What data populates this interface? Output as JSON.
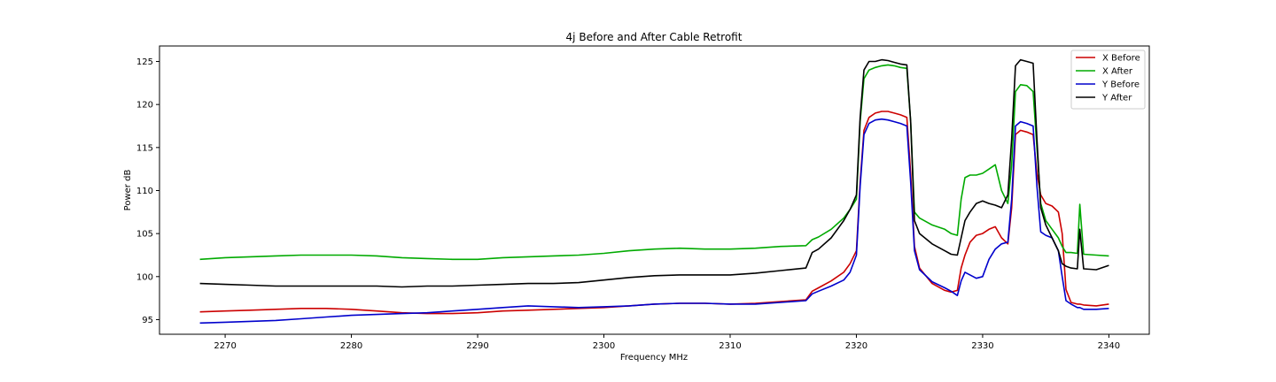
{
  "chart_data": {
    "type": "line",
    "title": "4j Before and After Cable Retrofit",
    "xlabel": "Frequency MHz",
    "ylabel": "Power dB",
    "xlim": [
      2264.8,
      2343.2
    ],
    "ylim": [
      93.3,
      126.8
    ],
    "xticks": [
      2270,
      2280,
      2290,
      2300,
      2310,
      2320,
      2330,
      2340
    ],
    "yticks": [
      95,
      100,
      105,
      110,
      115,
      120,
      125
    ],
    "grid": false,
    "legend_position": "top-right",
    "x": [
      2268,
      2270,
      2272,
      2274,
      2276,
      2278,
      2280,
      2282,
      2284,
      2286,
      2288,
      2290,
      2292,
      2294,
      2296,
      2298,
      2300,
      2302,
      2304,
      2306,
      2308,
      2310,
      2312,
      2314,
      2316,
      2316.5,
      2317,
      2318,
      2319,
      2319.5,
      2320,
      2320.3,
      2320.6,
      2321,
      2321.5,
      2322,
      2322.5,
      2323,
      2323.5,
      2324,
      2324.3,
      2324.6,
      2325,
      2326,
      2327,
      2327.5,
      2328,
      2328.3,
      2328.6,
      2329,
      2329.5,
      2330,
      2330.5,
      2331,
      2331.5,
      2332,
      2332.3,
      2332.6,
      2333,
      2333.5,
      2334,
      2334.3,
      2334.6,
      2335,
      2335.5,
      2336,
      2336.3,
      2336.6,
      2337,
      2337.5,
      2337.7,
      2338,
      2339,
      2340
    ],
    "series": [
      {
        "name": "X Before",
        "color": "#cc0000",
        "values": [
          95.9,
          96.0,
          96.1,
          96.2,
          96.3,
          96.3,
          96.2,
          96.0,
          95.8,
          95.7,
          95.7,
          95.8,
          96.0,
          96.1,
          96.2,
          96.3,
          96.4,
          96.6,
          96.8,
          96.9,
          96.9,
          96.8,
          96.9,
          97.1,
          97.3,
          98.3,
          98.7,
          99.5,
          100.5,
          101.5,
          103.0,
          111.0,
          117.0,
          118.5,
          119.0,
          119.2,
          119.2,
          119.0,
          118.8,
          118.5,
          112.0,
          103.5,
          101.0,
          99.2,
          98.4,
          98.2,
          98.4,
          101.0,
          102.5,
          104.0,
          104.8,
          105.0,
          105.5,
          105.8,
          104.5,
          103.8,
          108.0,
          116.5,
          117.0,
          116.8,
          116.5,
          112.0,
          109.5,
          108.5,
          108.2,
          107.5,
          105.0,
          98.5,
          97.0,
          96.8,
          96.8,
          96.7,
          96.6,
          96.8
        ]
      },
      {
        "name": "X After",
        "color": "#00aa00",
        "values": [
          102.0,
          102.2,
          102.3,
          102.4,
          102.5,
          102.5,
          102.5,
          102.4,
          102.2,
          102.1,
          102.0,
          102.0,
          102.2,
          102.3,
          102.4,
          102.5,
          102.7,
          103.0,
          103.2,
          103.3,
          103.2,
          103.2,
          103.3,
          103.5,
          103.6,
          104.3,
          104.6,
          105.5,
          106.8,
          107.8,
          109.0,
          118.0,
          123.0,
          124.0,
          124.3,
          124.5,
          124.6,
          124.5,
          124.3,
          124.2,
          118.0,
          107.5,
          106.8,
          106.0,
          105.5,
          105.0,
          104.8,
          109.0,
          111.5,
          111.8,
          111.8,
          112.0,
          112.5,
          113.0,
          110.0,
          108.5,
          113.0,
          121.5,
          122.3,
          122.2,
          121.5,
          115.0,
          108.5,
          106.5,
          105.5,
          104.5,
          103.5,
          102.8,
          102.8,
          102.7,
          108.4,
          102.6,
          102.5,
          102.4
        ]
      },
      {
        "name": "Y Before",
        "color": "#0000cc",
        "values": [
          94.6,
          94.7,
          94.8,
          94.9,
          95.1,
          95.3,
          95.5,
          95.6,
          95.7,
          95.8,
          96.0,
          96.2,
          96.4,
          96.6,
          96.5,
          96.4,
          96.5,
          96.6,
          96.8,
          96.9,
          96.9,
          96.8,
          96.8,
          97.0,
          97.2,
          98.0,
          98.3,
          98.9,
          99.6,
          100.5,
          102.5,
          110.5,
          116.5,
          117.8,
          118.2,
          118.3,
          118.2,
          118.0,
          117.8,
          117.5,
          111.0,
          103.0,
          100.8,
          99.4,
          98.7,
          98.3,
          97.8,
          99.5,
          100.5,
          100.2,
          99.8,
          100.0,
          102.0,
          103.2,
          103.8,
          104.0,
          109.0,
          117.5,
          118.0,
          117.8,
          117.5,
          110.5,
          105.2,
          104.8,
          104.5,
          103.0,
          100.0,
          97.2,
          96.8,
          96.4,
          96.4,
          96.2,
          96.2,
          96.3
        ]
      },
      {
        "name": "Y After",
        "color": "#000000",
        "values": [
          99.2,
          99.1,
          99.0,
          98.9,
          98.9,
          98.9,
          98.9,
          98.9,
          98.8,
          98.9,
          98.9,
          99.0,
          99.1,
          99.2,
          99.2,
          99.3,
          99.6,
          99.9,
          100.1,
          100.2,
          100.2,
          100.2,
          100.4,
          100.7,
          101.0,
          102.8,
          103.2,
          104.5,
          106.5,
          107.8,
          109.5,
          118.5,
          124.0,
          125.0,
          125.0,
          125.2,
          125.1,
          124.9,
          124.7,
          124.6,
          118.0,
          106.5,
          105.0,
          103.8,
          103.0,
          102.6,
          102.5,
          104.5,
          106.5,
          107.5,
          108.5,
          108.8,
          108.5,
          108.3,
          108.0,
          109.5,
          116.0,
          124.5,
          125.2,
          125.0,
          124.8,
          116.0,
          108.0,
          106.0,
          104.5,
          103.0,
          101.5,
          101.2,
          101.0,
          100.9,
          105.5,
          100.9,
          100.8,
          101.3
        ]
      }
    ]
  }
}
